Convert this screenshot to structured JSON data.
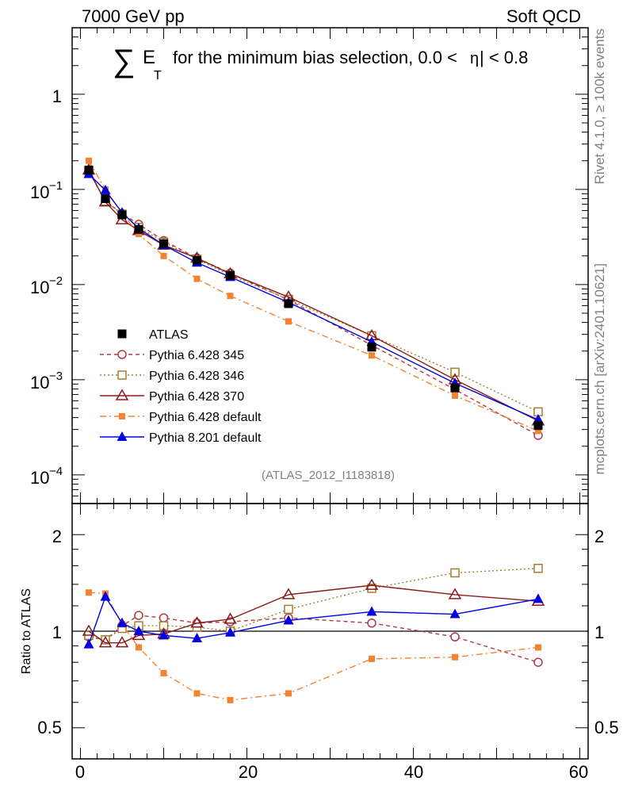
{
  "header": {
    "left": "7000 GeV pp",
    "right": "Soft QCD"
  },
  "title": {
    "sum_symbol": "∑",
    "E": "E",
    "T": "T",
    "text": "for the minimum bias selection, 0.0 <",
    "eta": "η",
    "text2": "| < 0.8"
  },
  "side": {
    "rivet": "Rivet 4.1.0, ≥ 100k events",
    "mcplots": "mcplots.cern.ch [arXiv:2401.10621]"
  },
  "analysis_label": "(ATLAS_2012_I1183818)",
  "ratio_ylabel": "Ratio to ATLAS",
  "legend": [
    "ATLAS",
    "Pythia 6.428 345",
    "Pythia 6.428 346",
    "Pythia 6.428 370",
    "Pythia 6.428 default",
    "Pythia 8.201 default"
  ],
  "colors": {
    "atlas": "#000000",
    "p345": "#b03a48",
    "p346": "#a67c2e",
    "p370": "#8b1a1a",
    "pdefault6": "#f58231",
    "pdefault8": "#0000e0"
  },
  "chart_data": [
    {
      "type": "line",
      "title": "∑ E_T for the minimum bias selection, 0.0 < |η| < 0.8",
      "xlim": [
        -1,
        61
      ],
      "ylim": [
        5e-05,
        5
      ],
      "yscale": "log",
      "ytick_labels": [
        "10^-4",
        "10^-3",
        "10^-2",
        "10^-1",
        "1"
      ],
      "x": [
        1,
        3,
        5,
        7,
        10,
        14,
        18,
        25,
        35,
        45,
        55
      ],
      "series": [
        {
          "name": "ATLAS",
          "marker": "filled-square",
          "values": [
            0.16,
            0.08,
            0.054,
            0.038,
            0.027,
            0.018,
            0.0125,
            0.0063,
            0.0022,
            0.00082,
            0.00033
          ]
        },
        {
          "name": "Pythia 6.428 345",
          "marker": "open-circle",
          "line": "dashed",
          "values": [
            0.155,
            0.075,
            0.056,
            0.043,
            0.029,
            0.019,
            0.0132,
            0.0069,
            0.0023,
            0.00079,
            0.00026
          ]
        },
        {
          "name": "Pythia 6.428 346",
          "marker": "open-square",
          "line": "dotted",
          "values": [
            0.155,
            0.075,
            0.055,
            0.04,
            0.028,
            0.0185,
            0.0125,
            0.007,
            0.0029,
            0.0012,
            0.00046
          ]
        },
        {
          "name": "Pythia 6.428 370",
          "marker": "open-triangle",
          "line": "solid",
          "values": [
            0.16,
            0.074,
            0.048,
            0.037,
            0.026,
            0.019,
            0.013,
            0.0074,
            0.0029,
            0.001,
            0.00037
          ]
        },
        {
          "name": "Pythia 6.428 default",
          "marker": "filled-small-square",
          "line": "dash-dot",
          "values": [
            0.2,
            0.1,
            0.056,
            0.034,
            0.02,
            0.0115,
            0.0076,
            0.0041,
            0.0018,
            0.00068,
            0.00029
          ]
        },
        {
          "name": "Pythia 8.201 default",
          "marker": "filled-triangle",
          "line": "solid",
          "values": [
            0.145,
            0.098,
            0.057,
            0.039,
            0.026,
            0.017,
            0.012,
            0.0065,
            0.0025,
            0.00092,
            0.00038
          ]
        }
      ]
    },
    {
      "type": "line",
      "xlabel": "",
      "ylabel": "Ratio to ATLAS",
      "xlim": [
        -1,
        61
      ],
      "ylim": [
        0.4,
        2.5
      ],
      "yscale": "log",
      "xticks": [
        0,
        20,
        40,
        60
      ],
      "yticks": [
        0.5,
        1,
        2
      ],
      "reference_line": 1,
      "x": [
        1,
        3,
        5,
        7,
        10,
        14,
        18,
        25,
        35,
        45,
        55
      ],
      "series": [
        {
          "name": "Pythia 6.428 345",
          "values": [
            0.96,
            0.94,
            1.04,
            1.12,
            1.1,
            1.06,
            1.07,
            1.1,
            1.06,
            0.96,
            0.8
          ]
        },
        {
          "name": "Pythia 6.428 346",
          "values": [
            0.97,
            0.94,
            1.02,
            1.04,
            1.04,
            1.03,
            1.0,
            1.17,
            1.36,
            1.52,
            1.57
          ]
        },
        {
          "name": "Pythia 6.428 370",
          "values": [
            1.0,
            0.92,
            0.92,
            0.97,
            0.98,
            1.06,
            1.09,
            1.3,
            1.39,
            1.3,
            1.24
          ]
        },
        {
          "name": "Pythia 6.428 default",
          "values": [
            1.32,
            1.31,
            1.05,
            0.89,
            0.74,
            0.64,
            0.61,
            0.64,
            0.82,
            0.83,
            0.89
          ]
        },
        {
          "name": "Pythia 8.201 default",
          "values": [
            0.91,
            1.28,
            1.06,
            1.0,
            0.97,
            0.95,
            0.99,
            1.08,
            1.15,
            1.13,
            1.26
          ]
        }
      ]
    }
  ]
}
